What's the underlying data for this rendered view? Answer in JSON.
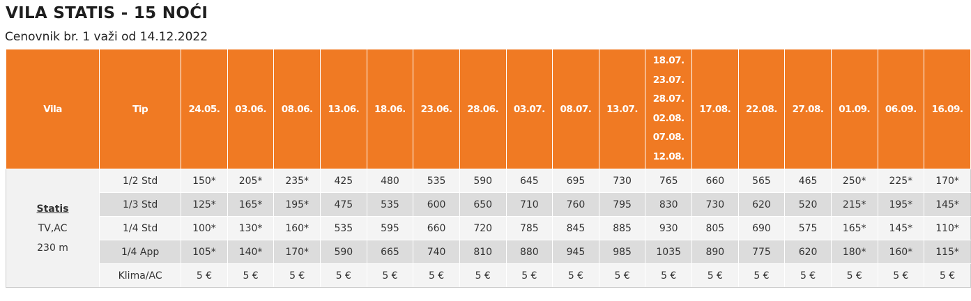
{
  "header": {
    "title": "VILA STATIS - 15 NOĆI",
    "subtitle": "Cenovnik br. 1 važi od 14.12.2022"
  },
  "table": {
    "columns": [
      "Vila",
      "Tip",
      "24.05.",
      "03.06.",
      "08.06.",
      "13.06.",
      "18.06.",
      "23.06.",
      "28.06.",
      "03.07.",
      "08.07.",
      "13.07.",
      [
        "18.07.",
        "23.07.",
        "28.07.",
        "02.08.",
        "07.08.",
        "12.08."
      ],
      "17.08.",
      "22.08.",
      "27.08.",
      "01.09.",
      "06.09.",
      "16.09."
    ],
    "villa": {
      "name": "Statis",
      "lines": [
        "TV,AC",
        "230 m"
      ]
    },
    "rows": [
      [
        "1/2 Std",
        "150*",
        "205*",
        "235*",
        "425",
        "480",
        "535",
        "590",
        "645",
        "695",
        "730",
        "765",
        "660",
        "565",
        "465",
        "250*",
        "225*",
        "170*"
      ],
      [
        "1/3 Std",
        "125*",
        "165*",
        "195*",
        "475",
        "535",
        "600",
        "650",
        "710",
        "760",
        "795",
        "830",
        "730",
        "620",
        "520",
        "215*",
        "195*",
        "145*"
      ],
      [
        "1/4 Std",
        "100*",
        "130*",
        "160*",
        "535",
        "595",
        "660",
        "720",
        "785",
        "845",
        "885",
        "930",
        "805",
        "690",
        "575",
        "165*",
        "145*",
        "110*"
      ],
      [
        "1/4 App",
        "105*",
        "140*",
        "170*",
        "590",
        "665",
        "740",
        "810",
        "880",
        "945",
        "985",
        "1035",
        "890",
        "775",
        "620",
        "180*",
        "160*",
        "115*"
      ],
      [
        "Klima/AC",
        "5 €",
        "5 €",
        "5 €",
        "5 €",
        "5 €",
        "5 €",
        "5 €",
        "5 €",
        "5 €",
        "5 €",
        "5 €",
        "5 €",
        "5 €",
        "5 €",
        "5 €",
        "5 €",
        "5 €"
      ]
    ]
  }
}
